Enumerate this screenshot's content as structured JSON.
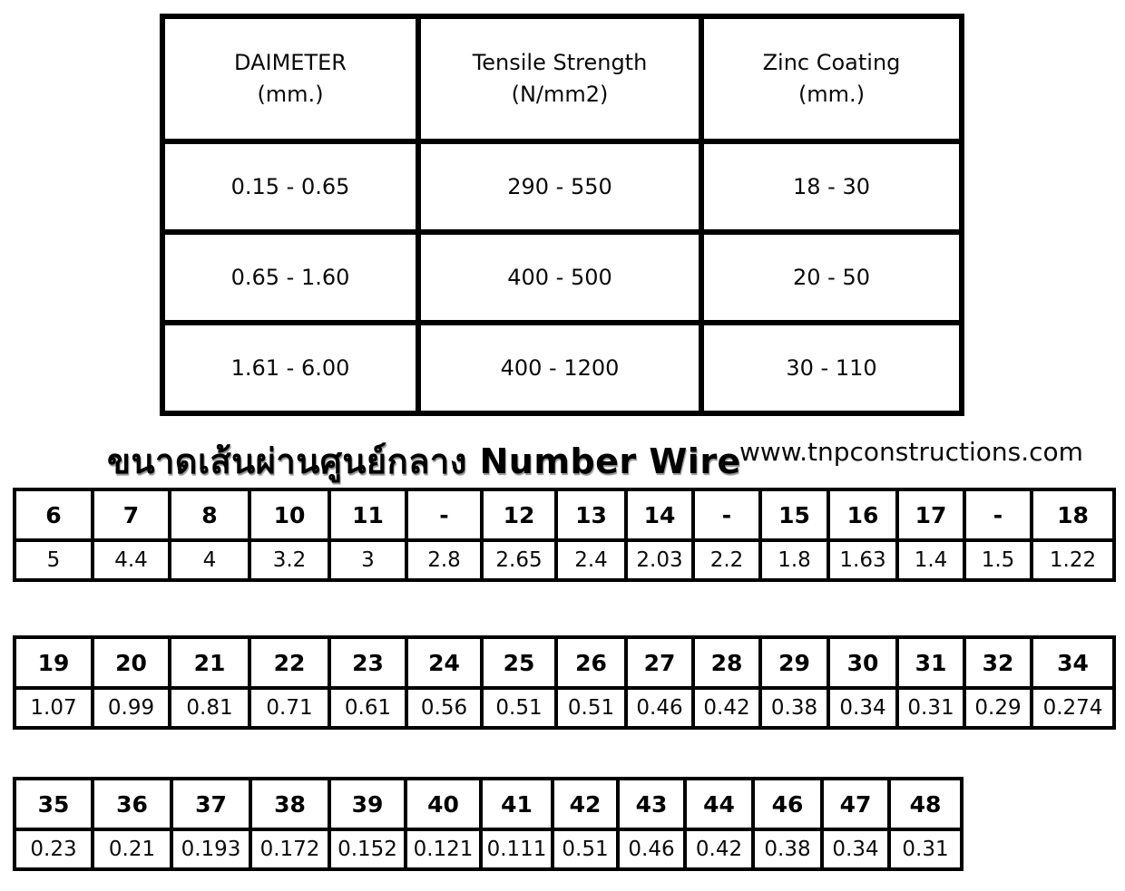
{
  "spec_table": {
    "headers": [
      {
        "line1": "DAIMETER",
        "line2": "(mm.)"
      },
      {
        "line1": "Tensile Strength",
        "line2": "(N/mm2)"
      },
      {
        "line1": "Zinc Coating",
        "line2": "(mm.)"
      }
    ],
    "rows": [
      [
        "0.15 - 0.65",
        "290 - 550",
        "18 - 30"
      ],
      [
        "0.65 - 1.60",
        "400 - 500",
        "20 - 50"
      ],
      [
        "1.61 - 6.00",
        "400 - 1200",
        "30 - 110"
      ]
    ]
  },
  "title": {
    "text": "ขนาดเส้นผ่านศูนย์กลาง Number Wire",
    "website": "www.tnpconstructions.com"
  },
  "wire_tables": [
    {
      "numbers": [
        "6",
        "7",
        "8",
        "10",
        "11",
        "-",
        "12",
        "13",
        "14",
        "-",
        "15",
        "16",
        "17",
        "-",
        "18"
      ],
      "diameters": [
        "5",
        "4.4",
        "4",
        "3.2",
        "3",
        "2.8",
        "2.65",
        "2.4",
        "2.03",
        "2.2",
        "1.8",
        "1.63",
        "1.4",
        "1.5",
        "1.22"
      ]
    },
    {
      "numbers": [
        "19",
        "20",
        "21",
        "22",
        "23",
        "24",
        "25",
        "26",
        "27",
        "28",
        "29",
        "30",
        "31",
        "32",
        "34"
      ],
      "diameters": [
        "1.07",
        "0.99",
        "0.81",
        "0.71",
        "0.61",
        "0.56",
        "0.51",
        "0.51",
        "0.46",
        "0.42",
        "0.38",
        "0.34",
        "0.31",
        "0.29",
        "0.274"
      ]
    },
    {
      "numbers": [
        "35",
        "36",
        "37",
        "38",
        "39",
        "40",
        "41",
        "42",
        "43",
        "44",
        "46",
        "47",
        "48"
      ],
      "diameters": [
        "0.23",
        "0.21",
        "0.193",
        "0.172",
        "0.152",
        "0.121",
        "0.111",
        "0.51",
        "0.46",
        "0.42",
        "0.38",
        "0.34",
        "0.31"
      ]
    }
  ],
  "colors": {
    "background": "#ffffff",
    "border": "#000000",
    "text": "#000000"
  }
}
